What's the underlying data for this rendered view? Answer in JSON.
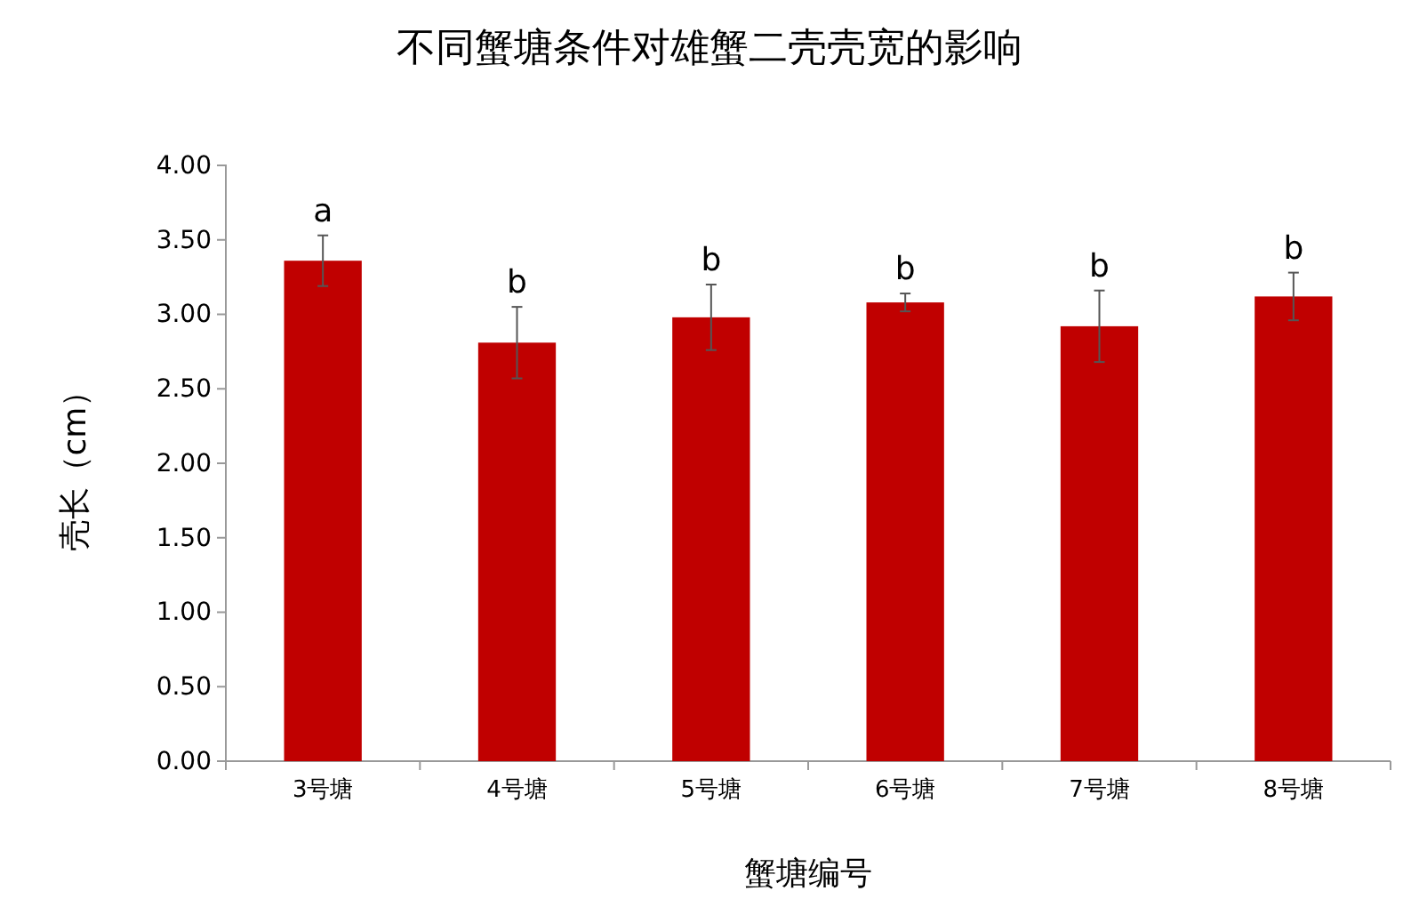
{
  "chart_data": {
    "type": "bar",
    "title": "不同蟹塘条件对雄蟹二壳壳宽的影响",
    "xlabel": "蟹塘编号",
    "ylabel": "壳长（cm）",
    "categories": [
      "3号塘",
      "4号塘",
      "5号塘",
      "6号塘",
      "7号塘",
      "8号塘"
    ],
    "values": [
      3.36,
      2.81,
      2.98,
      3.08,
      2.92,
      3.12
    ],
    "errors": [
      0.17,
      0.24,
      0.22,
      0.06,
      0.24,
      0.16
    ],
    "color": "#c00000",
    "ylim": [
      0,
      4
    ],
    "yticks": [
      {
        "value": 0,
        "label": "0.00"
      },
      {
        "value": 0.5,
        "label": "0.50"
      },
      {
        "value": 1,
        "label": "1.00"
      },
      {
        "value": 1.5,
        "label": "1.50"
      },
      {
        "value": 2,
        "label": "2.00"
      },
      {
        "value": 2.5,
        "label": "2.50"
      },
      {
        "value": 3,
        "label": "3.00"
      },
      {
        "value": 3.5,
        "label": "3.50"
      },
      {
        "value": 4,
        "label": "4.00"
      }
    ],
    "annotations": [
      {
        "text": "a",
        "x": "3号塘",
        "y": 3.53
      },
      {
        "text": "b",
        "x": "4号塘",
        "y": 3.05
      },
      {
        "text": "b",
        "x": "5号塘",
        "y": 3.2
      },
      {
        "text": "b",
        "x": "6号塘",
        "y": 3.14
      },
      {
        "text": "b",
        "x": "7号塘",
        "y": 3.16
      },
      {
        "text": "b",
        "x": "8号塘",
        "y": 3.28
      }
    ],
    "grid": false
  }
}
